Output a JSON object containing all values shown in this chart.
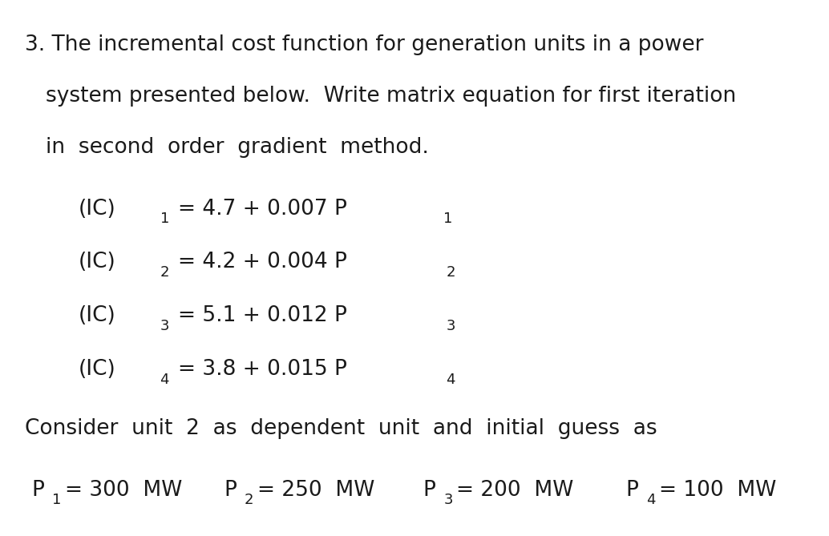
{
  "background_color": "#ffffff",
  "text_color": "#1a1a1a",
  "figsize": [
    10.34,
    6.69
  ],
  "dpi": 100,
  "line1": "3. The incremental cost function for generation units in a power",
  "line2": "system presented below.  Write matrix equation for first iteration",
  "line3": "in  second  order  gradient  method.",
  "eq1_main": "(IC)",
  "eq1_sub": "1",
  "eq1_rhs": "= 4.7 + 0.007 P",
  "eq1_psub": "1",
  "eq2_main": "(IC)",
  "eq2_sub": "2",
  "eq2_rhs": "= 4.2 + 0.004 P",
  "eq2_psub": "2",
  "eq3_main": "(IC)",
  "eq3_sub": "3",
  "eq3_rhs": "= 5.1 + 0.012 P",
  "eq3_psub": "3",
  "eq4_main": "(IC)",
  "eq4_sub": "4",
  "eq4_rhs": "= 3.8 + 0.015 P",
  "eq4_psub": "4",
  "consider_line": "Consider  unit  2  as  dependent  unit  and  initial  guess  as",
  "p1_val": "= 300  MW",
  "p2_val": "= 250  MW",
  "p3_val": "= 200  MW",
  "p4_val": "= 100  MW"
}
